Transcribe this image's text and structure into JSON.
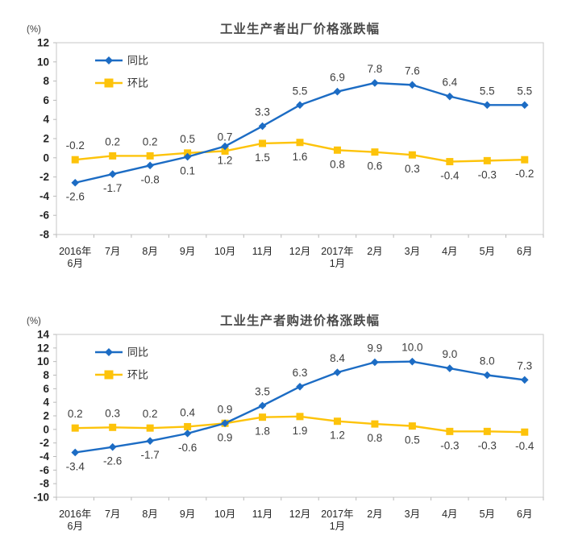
{
  "page": {
    "background": "#ffffff"
  },
  "colors": {
    "yoy_blue": "#1c6cc4",
    "mom_yellow": "#fdc30a",
    "plot_border": "#c7c7c7",
    "label_text": "#3d3d3d",
    "title_text": "#4a4a4a"
  },
  "chart_data": [
    {
      "type": "line",
      "title": "工业生产者出厂价格涨跌幅",
      "unit": "(%)",
      "grid": false,
      "legend_position": "top-left-inside",
      "categories": [
        [
          "2016年",
          "6月"
        ],
        [
          "7月"
        ],
        [
          "8月"
        ],
        [
          "9月"
        ],
        [
          "10月"
        ],
        [
          "11月"
        ],
        [
          "12月"
        ],
        [
          "2017年",
          "1月"
        ],
        [
          "2月"
        ],
        [
          "3月"
        ],
        [
          "4月"
        ],
        [
          "5月"
        ],
        [
          "6月"
        ]
      ],
      "ylim": [
        -8,
        12
      ],
      "y_ticks": [
        12,
        10,
        8,
        6,
        4,
        2,
        0,
        -2,
        -4,
        -6,
        -8
      ],
      "series": [
        {
          "id": "mom",
          "name": "环比",
          "marker": "square",
          "color_key": "mom_yellow",
          "values": [
            -0.2,
            0.2,
            0.2,
            0.5,
            0.7,
            1.5,
            1.6,
            0.8,
            0.6,
            0.3,
            -0.4,
            -0.3,
            -0.2
          ],
          "label_side": [
            "above",
            "above",
            "above",
            "above",
            "above",
            "below",
            "below",
            "below",
            "below",
            "below",
            "below",
            "below",
            "below"
          ]
        },
        {
          "id": "yoy",
          "name": "同比",
          "marker": "diamond",
          "color_key": "yoy_blue",
          "values": [
            -2.6,
            -1.7,
            -0.8,
            0.1,
            1.2,
            3.3,
            5.5,
            6.9,
            7.8,
            7.6,
            6.4,
            5.5,
            5.5
          ],
          "label_side": [
            "below",
            "below",
            "below",
            "below",
            "below",
            "above",
            "above",
            "above",
            "above",
            "above",
            "above",
            "above",
            "above"
          ]
        }
      ]
    },
    {
      "type": "line",
      "title": "工业生产者购进价格涨跌幅",
      "unit": "(%)",
      "grid": false,
      "legend_position": "top-left-inside",
      "categories": [
        [
          "2016年",
          "6月"
        ],
        [
          "7月"
        ],
        [
          "8月"
        ],
        [
          "9月"
        ],
        [
          "10月"
        ],
        [
          "11月"
        ],
        [
          "12月"
        ],
        [
          "2017年",
          "1月"
        ],
        [
          "2月"
        ],
        [
          "3月"
        ],
        [
          "4月"
        ],
        [
          "5月"
        ],
        [
          "6月"
        ]
      ],
      "ylim": [
        -10,
        14
      ],
      "y_ticks": [
        14,
        12,
        10,
        8,
        6,
        4,
        2,
        0,
        -2,
        -4,
        -6,
        -8,
        -10
      ],
      "series": [
        {
          "id": "mom",
          "name": "环比",
          "marker": "square",
          "color_key": "mom_yellow",
          "values": [
            0.2,
            0.3,
            0.2,
            0.4,
            0.9,
            1.8,
            1.9,
            1.2,
            0.8,
            0.5,
            -0.3,
            -0.3,
            -0.4
          ],
          "label_side": [
            "above",
            "above",
            "above",
            "above",
            "above",
            "below",
            "below",
            "below",
            "below",
            "below",
            "below",
            "below",
            "below"
          ]
        },
        {
          "id": "yoy",
          "name": "同比",
          "marker": "diamond",
          "color_key": "yoy_blue",
          "values": [
            -3.4,
            -2.6,
            -1.7,
            -0.6,
            0.9,
            3.5,
            6.3,
            8.4,
            9.9,
            10.0,
            9.0,
            8.0,
            7.3
          ],
          "label_side": [
            "below",
            "below",
            "below",
            "below",
            "below",
            "above",
            "above",
            "above",
            "above",
            "above",
            "above",
            "above",
            "above"
          ]
        }
      ]
    }
  ]
}
